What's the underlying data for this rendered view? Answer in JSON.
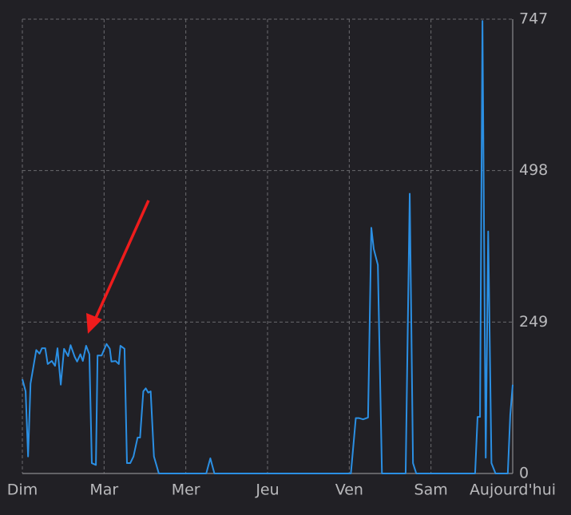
{
  "chart_data": {
    "type": "line",
    "color": "#2b8fe3",
    "grid": true,
    "xlim": [
      0,
      6
    ],
    "xticks": [
      {
        "value": 0,
        "label": "Dim"
      },
      {
        "value": 1,
        "label": "Mar"
      },
      {
        "value": 2,
        "label": "Mer"
      },
      {
        "value": 3,
        "label": "Jeu"
      },
      {
        "value": 4,
        "label": "Ven"
      },
      {
        "value": 5,
        "label": "Sam"
      },
      {
        "value": 6,
        "label": "Aujourd'hui"
      }
    ],
    "ylim": [
      0,
      747
    ],
    "yticks": [
      0,
      249,
      498,
      747
    ],
    "x": [
      0,
      0.04,
      0.07,
      0.1,
      0.17,
      0.21,
      0.24,
      0.28,
      0.31,
      0.36,
      0.4,
      0.43,
      0.47,
      0.51,
      0.56,
      0.59,
      0.64,
      0.67,
      0.71,
      0.74,
      0.78,
      0.82,
      0.85,
      0.9,
      0.92,
      0.97,
      1.03,
      1.07,
      1.09,
      1.14,
      1.18,
      1.2,
      1.25,
      1.28,
      1.32,
      1.36,
      1.41,
      1.44,
      1.48,
      1.51,
      1.54,
      1.57,
      1.61,
      1.67,
      2.25,
      2.3,
      2.35,
      4.02,
      4.08,
      4.12,
      4.17,
      4.23,
      4.27,
      4.3,
      4.35,
      4.4,
      4.69,
      4.74,
      4.78,
      4.82,
      5.54,
      5.57,
      5.6,
      5.63,
      5.67,
      5.7,
      5.74,
      5.79,
      5.94,
      5.97,
      6.0
    ],
    "values": [
      155,
      135,
      28,
      148,
      203,
      197,
      206,
      206,
      180,
      185,
      177,
      206,
      146,
      205,
      193,
      211,
      192,
      184,
      196,
      185,
      210,
      196,
      17,
      14,
      194,
      194,
      213,
      205,
      184,
      185,
      180,
      210,
      205,
      17,
      17,
      28,
      59,
      59,
      135,
      140,
      133,
      135,
      28,
      0,
      0,
      25,
      0,
      0,
      91,
      91,
      89,
      92,
      404,
      369,
      343,
      0,
      0,
      460,
      17,
      0,
      0,
      93,
      93,
      744,
      26,
      398,
      17,
      0,
      0,
      96,
      146
    ]
  }
}
